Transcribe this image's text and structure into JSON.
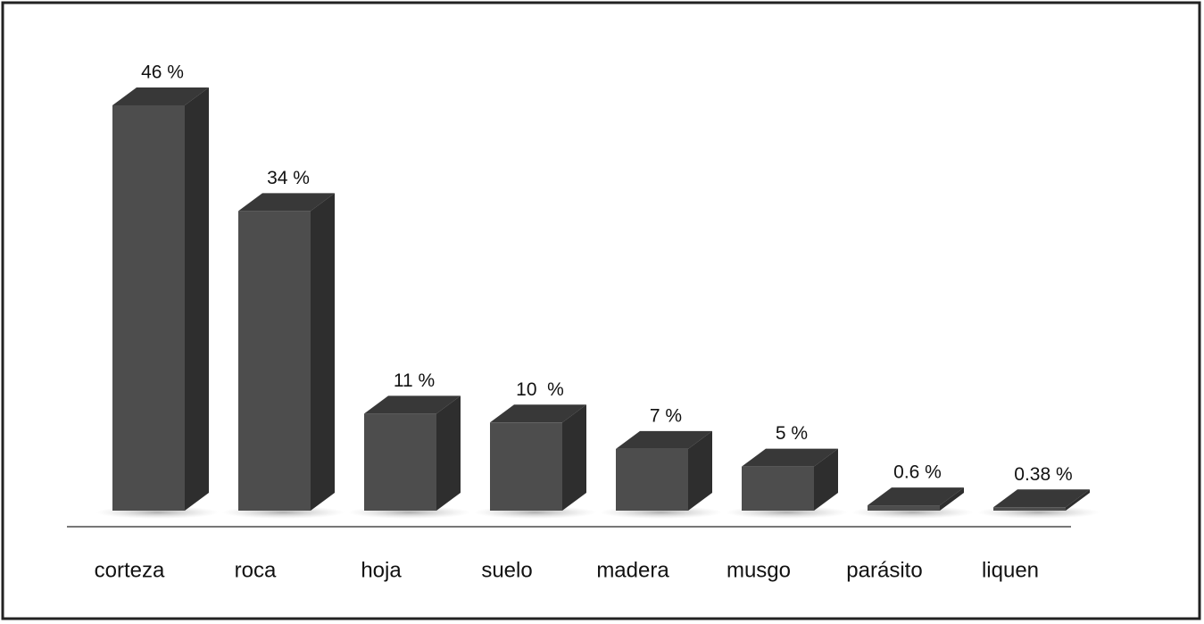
{
  "chart_data": {
    "type": "bar3d",
    "categories": [
      "corteza",
      "roca",
      "hoja",
      "suelo",
      "madera",
      "musgo",
      "parásito",
      "liquen"
    ],
    "values": [
      46,
      34,
      11,
      10,
      7,
      5,
      0.6,
      0.38
    ],
    "value_labels": [
      "46 %",
      "34 %",
      "11 %",
      "10  %",
      "7 %",
      "5 %",
      "0.6 %",
      "0.38 %"
    ],
    "color": "#4d4d4d"
  }
}
